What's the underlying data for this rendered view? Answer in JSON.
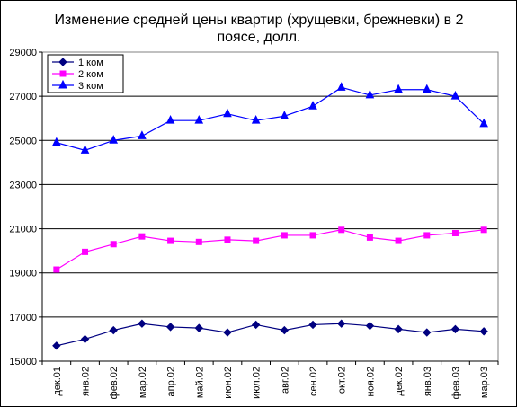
{
  "chart_data": {
    "type": "line",
    "title": "Изменение средней цены квартир (хрущевки, брежневки) в 2 поясе, долл.",
    "title_lines": [
      "Изменение средней цены квартир (хрущевки, брежневки) в 2",
      "поясе, долл."
    ],
    "categories": [
      "дек.01",
      "янв.02",
      "фев.02",
      "мар.02",
      "апр.02",
      "май.02",
      "июн.02",
      "июл.02",
      "авг.02",
      "сен.02",
      "окт.02",
      "ноя.02",
      "дек.02",
      "янв.03",
      "фев.03",
      "мар.03"
    ],
    "ylim": [
      15000,
      29000
    ],
    "yticks": [
      "15000",
      "17000",
      "19000",
      "21000",
      "23000",
      "25000",
      "27000",
      "29000"
    ],
    "grid": true,
    "legend": "top-left",
    "series": [
      {
        "name": "1 ком",
        "color": "#000080",
        "marker": "diamond",
        "values": [
          15700,
          16000,
          16400,
          16700,
          16550,
          16500,
          16300,
          16650,
          16400,
          16650,
          16700,
          16600,
          16450,
          16300,
          16450,
          16350
        ]
      },
      {
        "name": "2 ком",
        "color": "#FF00FF",
        "marker": "square",
        "values": [
          19150,
          19950,
          20300,
          20650,
          20450,
          20400,
          20500,
          20450,
          20700,
          20700,
          20950,
          20600,
          20450,
          20700,
          20800,
          20950
        ]
      },
      {
        "name": "3 ком",
        "color": "#0000FF",
        "marker": "triangle",
        "values": [
          24900,
          24550,
          25000,
          25200,
          25900,
          25900,
          26200,
          25900,
          26100,
          26550,
          27400,
          27050,
          27300,
          27300,
          27000,
          25750
        ]
      }
    ]
  }
}
